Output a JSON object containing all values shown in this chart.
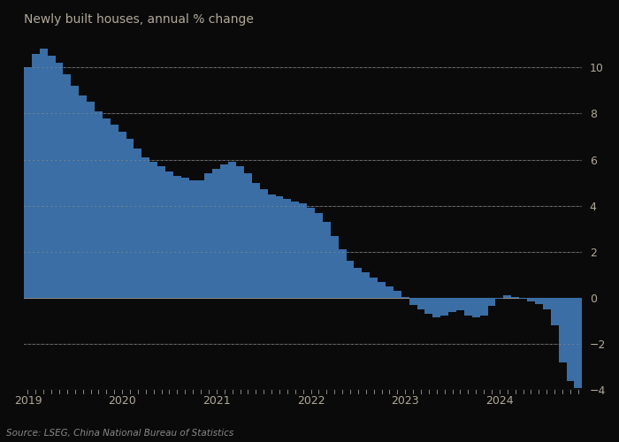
{
  "title": "Newly built houses, annual % change",
  "source": "Source: LSEG, China National Bureau of Statistics",
  "bar_color": "#3a6ea5",
  "background_color": "#0a0a0a",
  "text_color": "#b0a898",
  "grid_color_solid": "#3a3a3a",
  "grid_color_dot": "#555555",
  "axis_color": "#666666",
  "ylim": [
    -4,
    11.5
  ],
  "yticks": [
    -4,
    -2,
    0,
    2,
    4,
    6,
    8,
    10
  ],
  "values": [
    10.0,
    10.6,
    10.8,
    10.5,
    10.2,
    9.7,
    9.2,
    8.8,
    8.5,
    8.1,
    7.8,
    7.5,
    7.2,
    6.9,
    6.5,
    6.1,
    5.9,
    5.7,
    5.5,
    5.3,
    5.2,
    5.1,
    5.1,
    5.4,
    5.6,
    5.8,
    5.9,
    5.7,
    5.4,
    5.0,
    4.7,
    4.5,
    4.4,
    4.3,
    4.2,
    4.1,
    3.9,
    3.7,
    3.3,
    2.7,
    2.1,
    1.6,
    1.3,
    1.1,
    0.9,
    0.7,
    0.5,
    0.3,
    0.05,
    -0.3,
    -0.5,
    -0.7,
    -0.85,
    -0.75,
    -0.6,
    -0.55,
    -0.75,
    -0.85,
    -0.75,
    -0.35,
    -0.05,
    0.1,
    0.05,
    -0.05,
    -0.15,
    -0.25,
    -0.5,
    -1.2,
    -2.8,
    -3.6,
    -3.9
  ],
  "xtick_labels": [
    "2019",
    "2020",
    "2021",
    "2022",
    "2023",
    "2024"
  ],
  "xtick_positions": [
    0,
    12,
    24,
    36,
    48,
    60
  ],
  "n_bars": 71
}
